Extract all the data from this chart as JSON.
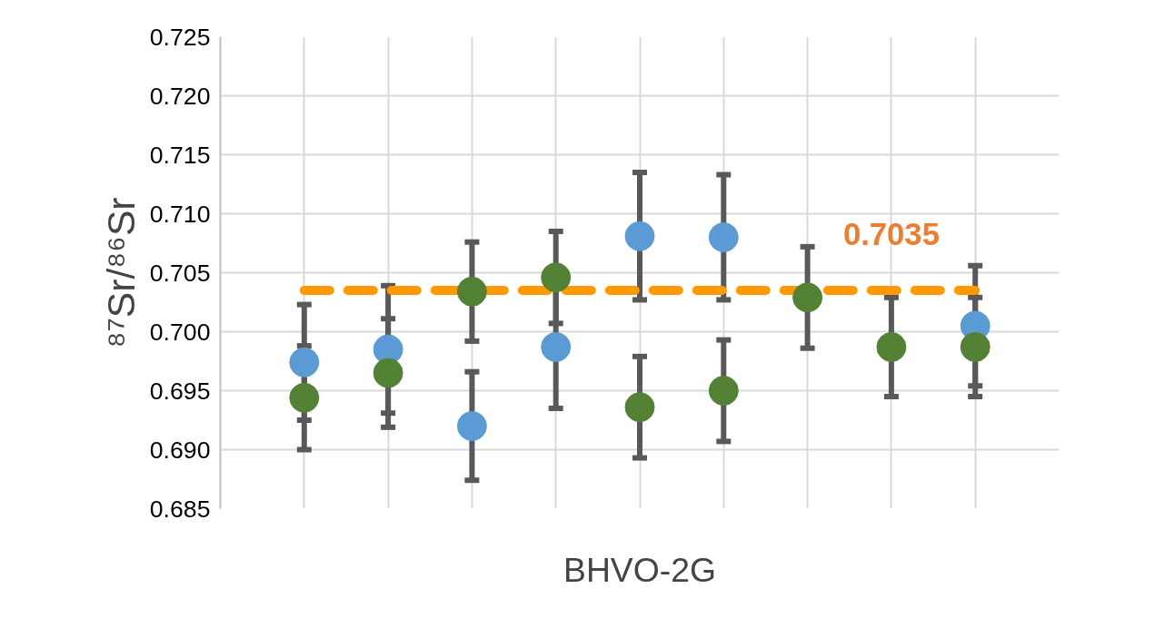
{
  "chart_data": {
    "type": "scatter",
    "ylabel": "⁸⁷Sr/⁸⁶Sr",
    "xlabel": "BHVO-2G",
    "categories": [
      null,
      null,
      null,
      null,
      null,
      null,
      null,
      null,
      null
    ],
    "series": [
      {
        "color": "#5b9bd5",
        "values": [
          0.6974,
          0.6985,
          0.692,
          0.6987,
          0.7081,
          0.708,
          null,
          null,
          0.7005
        ],
        "errors": [
          0.0049,
          0.0054,
          0.0046,
          0.0052,
          0.0054,
          0.0053,
          null,
          null,
          0.0051
        ]
      },
      {
        "color": "#548235",
        "values": [
          0.6944,
          0.6965,
          0.7034,
          0.7046,
          0.6936,
          0.695,
          0.7029,
          0.6987,
          0.6987
        ],
        "errors": [
          0.0044,
          0.0046,
          0.0042,
          0.0039,
          0.0043,
          0.0043,
          0.0043,
          0.0042,
          0.0042
        ]
      }
    ],
    "ylim": [
      0.685,
      0.725
    ],
    "yticks": [
      0.685,
      {
        "value": 0.69,
        "label": "0.690"
      },
      0.695,
      {
        "value": 0.7,
        "label": "0.700"
      },
      0.705,
      {
        "value": 0.71,
        "label": "0.710"
      },
      0.715,
      {
        "value": 0.72,
        "label": "0.720"
      },
      0.725
    ],
    "ref_lines": [
      {
        "axis": "y",
        "value": 0.7035,
        "label": "0.7035",
        "color": "#ff9900",
        "line_style": "dashed"
      }
    ],
    "grid": true,
    "marker": "circle",
    "tick_labels": "y"
  }
}
